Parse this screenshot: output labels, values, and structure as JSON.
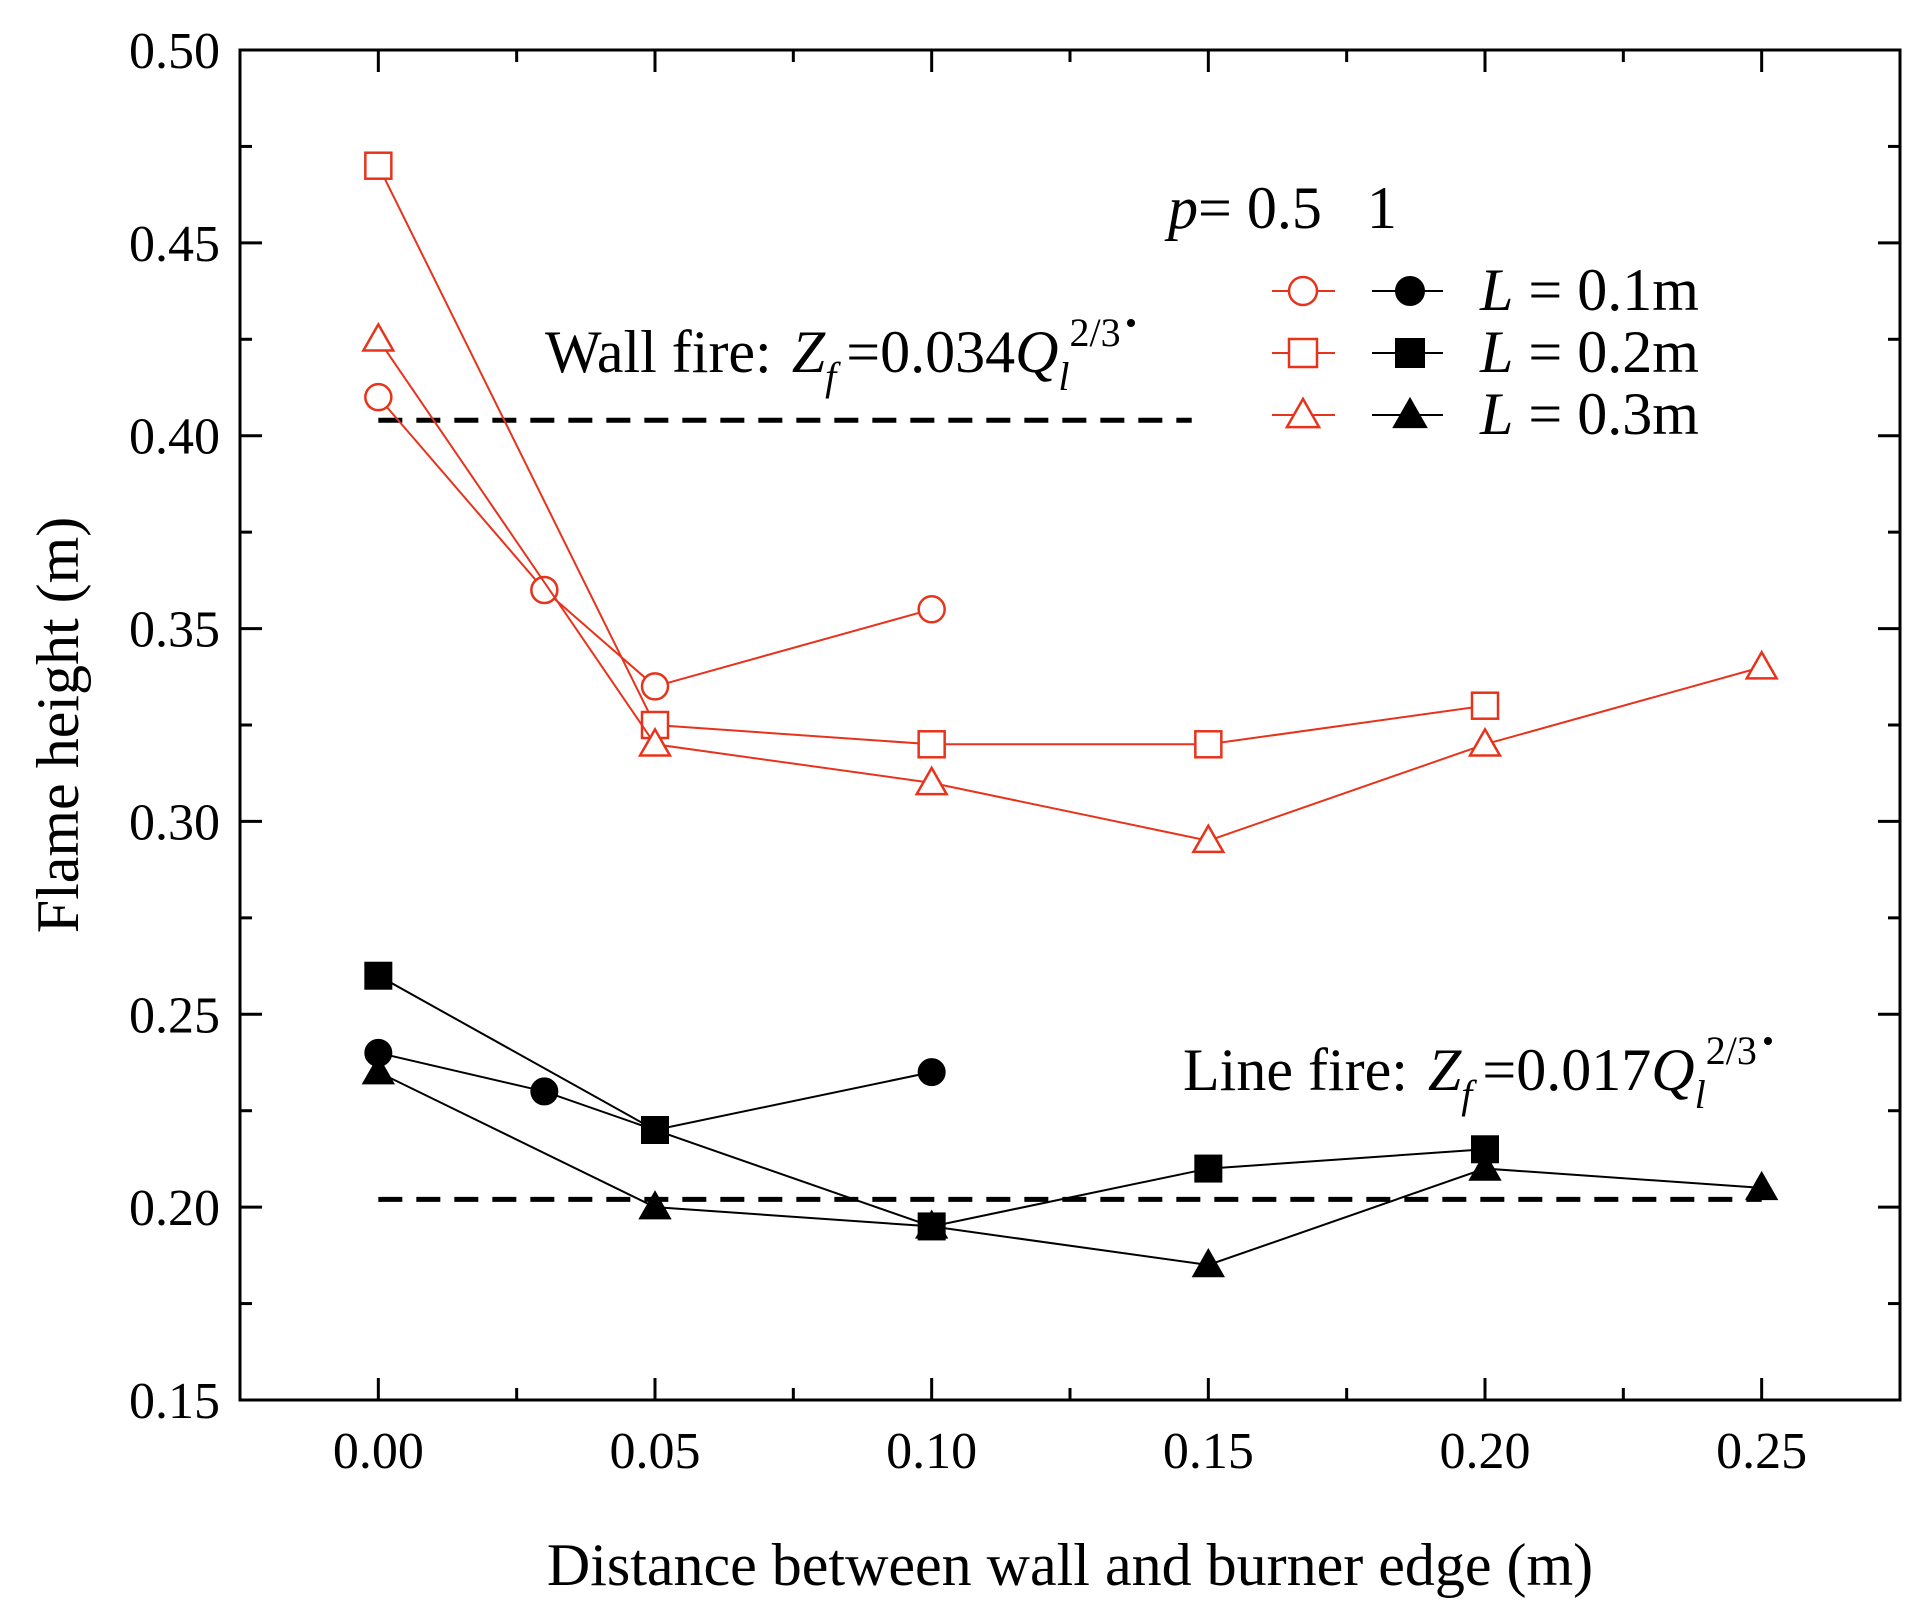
{
  "chart_data": {
    "type": "line",
    "xlabel": "Distance between wall and burner edge (m)",
    "ylabel": "Flame height (m)",
    "xlim": [
      -0.025,
      0.275
    ],
    "ylim": [
      0.15,
      0.5
    ],
    "x_ticks": [
      "0.00",
      "0.05",
      "0.10",
      "0.15",
      "0.20",
      "0.25"
    ],
    "y_ticks": [
      "0.15",
      "0.20",
      "0.25",
      "0.30",
      "0.35",
      "0.40",
      "0.45",
      "0.50"
    ],
    "grid": false,
    "legend": {
      "placement": "top-right",
      "p_prefix": "p",
      "p_equals": "= 0.5   1",
      "entries": [
        {
          "italic": "L",
          "label": " = 0.1m",
          "marker": "circle"
        },
        {
          "italic": "L",
          "label": " = 0.2m",
          "marker": "square"
        },
        {
          "italic": "L",
          "label": " = 0.3m",
          "marker": "triangle"
        }
      ]
    },
    "annotations": {
      "wall_fire": {
        "label": "Wall fire:",
        "zf": "Z",
        "zf_sub": "f",
        "coef": "=0.034",
        "q": "Q",
        "q_sub": "l",
        "q_sup": "2/3",
        "value": 0.404
      },
      "line_fire": {
        "label": "Line fire:",
        "zf": "Z",
        "zf_sub": "f",
        "coef": "=0.017",
        "q": "Q",
        "q_sub": "l",
        "q_sup": "2/3",
        "value": 0.202
      }
    },
    "colors": {
      "p05": "#e8331c",
      "p1": "#000000",
      "reference": "#000000"
    },
    "series": [
      {
        "p": "0.5",
        "L": "0.1m",
        "marker": "circle",
        "fill": "open",
        "x": [
          0.0,
          0.03,
          0.05,
          0.1
        ],
        "y": [
          0.41,
          0.36,
          0.335,
          0.355
        ]
      },
      {
        "p": "0.5",
        "L": "0.2m",
        "marker": "square",
        "fill": "open",
        "x": [
          0.0,
          0.05,
          0.1,
          0.15,
          0.2
        ],
        "y": [
          0.47,
          0.325,
          0.32,
          0.32,
          0.33
        ]
      },
      {
        "p": "0.5",
        "L": "0.3m",
        "marker": "triangle",
        "fill": "open",
        "x": [
          0.0,
          0.05,
          0.1,
          0.15,
          0.2,
          0.25
        ],
        "y": [
          0.425,
          0.32,
          0.31,
          0.295,
          0.32,
          0.34
        ]
      },
      {
        "p": "1",
        "L": "0.1m",
        "marker": "circle",
        "fill": "solid",
        "x": [
          0.0,
          0.03,
          0.05,
          0.1
        ],
        "y": [
          0.24,
          0.23,
          0.22,
          0.235
        ]
      },
      {
        "p": "1",
        "L": "0.2m",
        "marker": "square",
        "fill": "solid",
        "x": [
          0.0,
          0.05,
          0.1,
          0.15,
          0.2
        ],
        "y": [
          0.26,
          0.22,
          0.195,
          0.21,
          0.215
        ]
      },
      {
        "p": "1",
        "L": "0.3m",
        "marker": "triangle",
        "fill": "solid",
        "x": [
          0.0,
          0.05,
          0.1,
          0.15,
          0.2,
          0.25
        ],
        "y": [
          0.235,
          0.2,
          0.195,
          0.185,
          0.21,
          0.205
        ]
      }
    ]
  }
}
